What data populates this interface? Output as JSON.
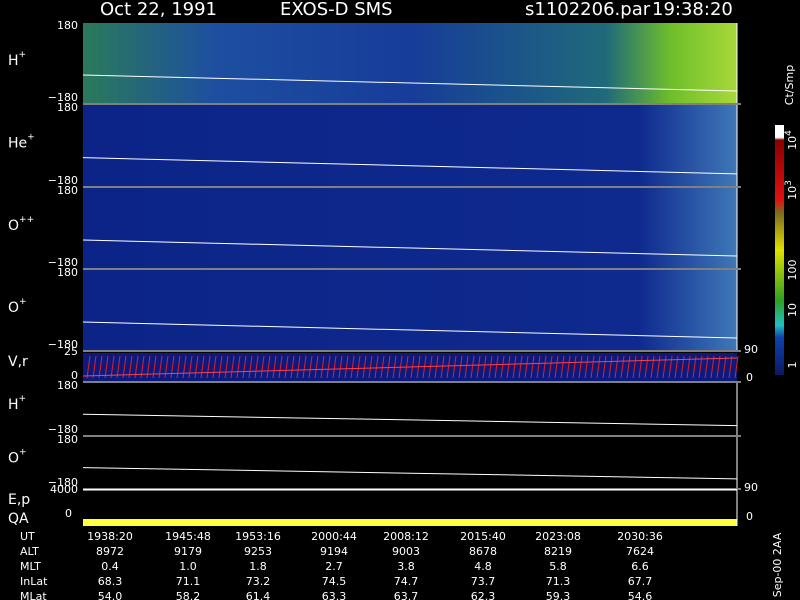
{
  "header": {
    "date": "Oct 22, 1991",
    "instrument": "EXOS-D SMS",
    "file": "s1102206.par",
    "time": "19:38:20"
  },
  "spectrograms": [
    {
      "ion": "H",
      "charge": "+",
      "ymax": "180",
      "ymin": "−180"
    },
    {
      "ion": "He",
      "charge": "+",
      "ymax": "180",
      "ymin": "−180"
    },
    {
      "ion": "O",
      "charge": "++",
      "ymax": "180",
      "ymin": "−180"
    },
    {
      "ion": "O",
      "charge": "+",
      "ymax": "180",
      "ymin": "−180"
    }
  ],
  "velocity": {
    "label": "V,r",
    "ymax": "25",
    "ymin": "0",
    "right_max": "90",
    "right_min": "0"
  },
  "angle_panels": [
    {
      "ion": "H",
      "charge": "+",
      "ymax": "180",
      "ymin": "−180"
    },
    {
      "ion": "O",
      "charge": "+",
      "ymax": "180",
      "ymin": "−180"
    }
  ],
  "energy": {
    "label": "E,p",
    "ymax": "4000",
    "right_max": "90"
  },
  "qa": {
    "label": "QA",
    "ymin": "0",
    "right_min": "0"
  },
  "colorbar": {
    "unit": "Ct/Smp",
    "ticks": [
      {
        "base": "10",
        "exp": "4"
      },
      {
        "base": "10",
        "exp": "3"
      },
      {
        "base": "100"
      },
      {
        "base": "10"
      },
      {
        "base": "1"
      }
    ]
  },
  "table": {
    "rows": [
      [
        "UT",
        "1938:20",
        "1945:48",
        "1953:16",
        "2000:44",
        "2008:12",
        "2015:40",
        "2023:08",
        "2030:36"
      ],
      [
        "ALT",
        "8972",
        "9179",
        "9253",
        "9194",
        "9003",
        "8678",
        "8219",
        "7624"
      ],
      [
        "MLT",
        "0.4",
        "1.0",
        "1.8",
        "2.7",
        "3.8",
        "4.8",
        "5.8",
        "6.6"
      ],
      [
        "InLat",
        "68.3",
        "71.1",
        "73.2",
        "74.5",
        "74.7",
        "73.7",
        "71.3",
        "67.7"
      ],
      [
        "MLat",
        "54.0",
        "58.2",
        "61.4",
        "63.3",
        "63.7",
        "62.3",
        "59.3",
        "54.6"
      ]
    ]
  },
  "footer": "Sep-00 2AA"
}
